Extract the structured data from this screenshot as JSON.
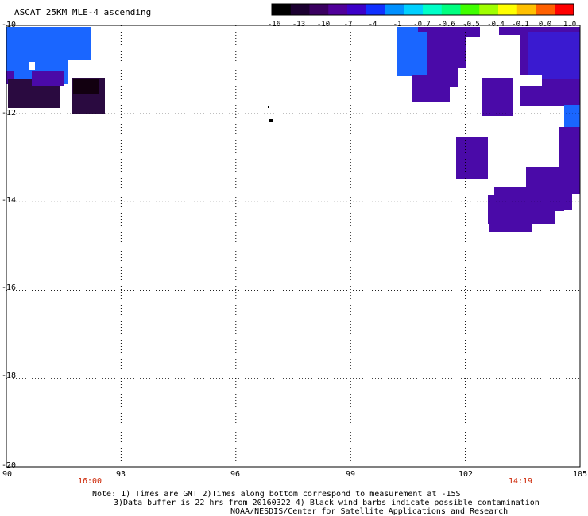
{
  "title": "ASCAT 25KM MLE-4 ascending",
  "colors": {
    "swath_blue": "#1a66ff",
    "swath_purple": "#4a0aa8",
    "swath_dark": "#2a0a40",
    "swath_black": "#120010",
    "grid": "#000000",
    "time_label": "#cc2200"
  },
  "colorbar": {
    "colors": [
      "#000000",
      "#1b0030",
      "#3a0060",
      "#50009a",
      "#3c00c8",
      "#1030ff",
      "#0090ff",
      "#00d0ff",
      "#00ffc8",
      "#00ff80",
      "#40ff00",
      "#a0ff00",
      "#ffff00",
      "#ffc000",
      "#ff6000",
      "#ff0000"
    ],
    "ticks": [
      "-16",
      "-13",
      "-10",
      "-7",
      "-4",
      "-1",
      "-0.7",
      "-0.6",
      "-0.5",
      "-0.4",
      "-0.1",
      "0.0",
      "1.0"
    ]
  },
  "map": {
    "latitudes": [
      "-10",
      "-12",
      "-14",
      "-16",
      "-18",
      "-20"
    ],
    "longitudes": [
      "90",
      "93",
      "96",
      "99",
      "102",
      "105"
    ],
    "times": [
      "16:00",
      "14:19"
    ]
  },
  "notes": {
    "line1": "Note: 1) Times are GMT 2)Times along bottom correspond to measurement at -15S",
    "line2": "3)Data buffer is 22 hrs from 20160322 4) Black wind barbs indicate possible contamination",
    "line3": "NOAA/NESDIS/Center for Satellite Applications and Research"
  }
}
